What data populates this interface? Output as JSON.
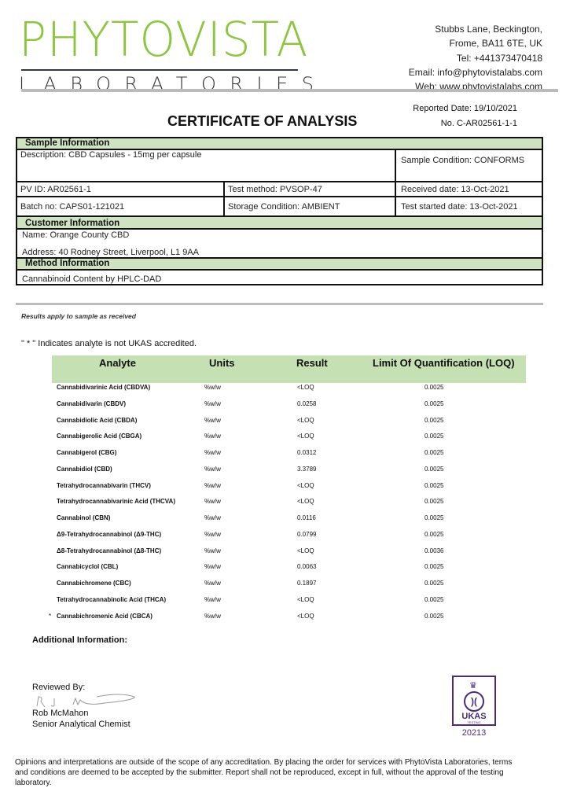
{
  "header": {
    "logo_main": "PHYTOVISTA",
    "logo_sub": "LABORATORIES",
    "address1": "Stubbs Lane, Beckington,",
    "address2": "Frome, BA11 6TE, UK",
    "tel": "Tel: +441373470418",
    "email": "Email: info@phytovistalabs.com",
    "web": "Web: www.phytovistalabs.com",
    "reported_date": "Reported Date: 19/10/2021",
    "cert_no": "No. C-AR02561-1-1",
    "title": "CERTIFICATE OF ANALYSIS"
  },
  "sample": {
    "heading": "Sample Information",
    "description": "Description: CBD Capsules - 15mg per capsule",
    "condition": "Sample Condition: CONFORMS",
    "pv_id": "PV ID: AR02561-1",
    "test_method": "Test method: PVSOP-47",
    "received": "Received date: 13-Oct-2021",
    "batch": "Batch no: CAPS01-121021",
    "storage": "Storage Condition: AMBIENT",
    "test_started": "Test started date: 13-Oct-2021"
  },
  "customer": {
    "heading": "Customer Information",
    "name": "Name:   Orange County CBD",
    "address": "Address:   40 Rodney Street, Liverpool, L1 9AA"
  },
  "method": {
    "heading": "Method Information",
    "value": "Cannabinoid Content by HPLC-DAD"
  },
  "notes": {
    "results_apply": "Results apply to sample as received",
    "ukas_note": "\" * \" Indicates analyte is not UKAS accredited."
  },
  "table": {
    "headers": [
      "Analyte",
      "Units",
      "Result",
      "Limit Of Quantification (LOQ)"
    ],
    "rows": [
      {
        "mark": "",
        "analyte": "Cannabidivarinic Acid (CBDVA)",
        "units": "%w/w",
        "result": "<LOQ",
        "loq": "0.0025"
      },
      {
        "mark": "",
        "analyte": "Cannabidivarin (CBDV)",
        "units": "%w/w",
        "result": "0.0258",
        "loq": "0.0025"
      },
      {
        "mark": "",
        "analyte": "Cannabidiolic Acid (CBDA)",
        "units": "%w/w",
        "result": "<LOQ",
        "loq": "0.0025"
      },
      {
        "mark": "",
        "analyte": "Cannabigerolic Acid (CBGA)",
        "units": "%w/w",
        "result": "<LOQ",
        "loq": "0.0025"
      },
      {
        "mark": "",
        "analyte": "Cannabigerol (CBG)",
        "units": "%w/w",
        "result": "0.0312",
        "loq": "0.0025"
      },
      {
        "mark": "",
        "analyte": "Cannabidiol (CBD)",
        "units": "%w/w",
        "result": "3.3789",
        "loq": "0.0025"
      },
      {
        "mark": "",
        "analyte": "Tetrahydrocannabivarin (THCV)",
        "units": "%w/w",
        "result": "<LOQ",
        "loq": "0.0025"
      },
      {
        "mark": "",
        "analyte": "Tetrahydrocannabivarinic Acid (THCVA)",
        "units": "%w/w",
        "result": "<LOQ",
        "loq": "0.0025"
      },
      {
        "mark": "",
        "analyte": "Cannabinol (CBN)",
        "units": "%w/w",
        "result": "0.0116",
        "loq": "0.0025"
      },
      {
        "mark": "",
        "analyte": "Δ9-Tetrahydrocannabinol (Δ9-THC)",
        "units": "%w/w",
        "result": "0.0799",
        "loq": "0.0025"
      },
      {
        "mark": "",
        "analyte": "Δ8-Tetrahydrocannabinol (Δ8-THC)",
        "units": "%w/w",
        "result": "<LOQ",
        "loq": "0.0036"
      },
      {
        "mark": "",
        "analyte": "Cannabicyclol (CBL)",
        "units": "%w/w",
        "result": "0.0063",
        "loq": "0.0025"
      },
      {
        "mark": "",
        "analyte": "Cannabichromene (CBC)",
        "units": "%w/w",
        "result": "0.1897",
        "loq": "0.0025"
      },
      {
        "mark": "",
        "analyte": "Tetrahydrocannabinolic Acid (THCA)",
        "units": "%w/w",
        "result": "<LOQ",
        "loq": "0.0025"
      },
      {
        "mark": "*",
        "analyte": "Cannabichromenic Acid (CBCA)",
        "units": "%w/w",
        "result": "<LOQ",
        "loq": "0.0025"
      }
    ]
  },
  "additional_info": "Additional Information:",
  "review": {
    "label": "Reviewed By:",
    "signature": "R J Mcmahon",
    "name": "Rob McMahon",
    "role": "Senior Analytical Chemist"
  },
  "ukas": {
    "text": "UKAS",
    "sub": "TESTING",
    "number": "20213",
    "color": "#4b2a7b"
  },
  "footer": "Opinions and interpretations are outside of the scope of any accreditation. By placing the order for services with PhytoVista Laboratories, terms and conditions are deemed to be accepted by the submitter. Report shall not be reproduced, except in full, without the approval of the testing laboratory.",
  "colors": {
    "brand_green": "#8cc63f",
    "section_green": "#cfe3c2"
  }
}
